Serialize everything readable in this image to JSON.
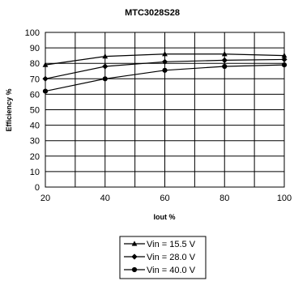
{
  "chart_data": {
    "type": "line",
    "title": "MTC3028S28",
    "xlabel": "Iout %",
    "ylabel": "Efficiency %",
    "x": [
      20,
      40,
      60,
      80,
      100
    ],
    "xlim": [
      20,
      100
    ],
    "ylim": [
      0,
      100
    ],
    "xticks": [
      20,
      40,
      60,
      80,
      100
    ],
    "yticks": [
      0,
      10,
      20,
      30,
      40,
      50,
      60,
      70,
      80,
      90,
      100
    ],
    "grid": true,
    "legend_position": "bottom-center",
    "series": [
      {
        "name": "Vin = 15.5 V",
        "marker": "triangle",
        "values": [
          79,
          84.5,
          86,
          86,
          85
        ]
      },
      {
        "name": "Vin = 28.0 V",
        "marker": "diamond",
        "values": [
          70,
          78,
          81,
          82,
          82.5
        ]
      },
      {
        "name": "Vin = 40.0 V",
        "marker": "circle",
        "values": [
          62,
          70,
          75.5,
          78,
          79
        ]
      }
    ]
  }
}
